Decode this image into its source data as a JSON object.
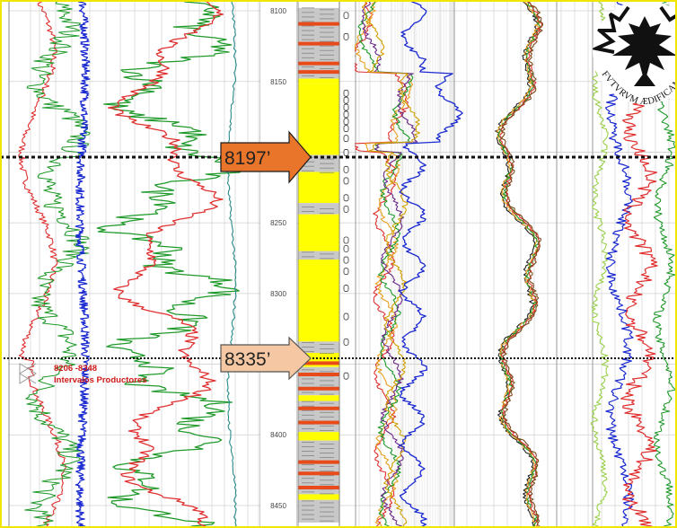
{
  "depth_track": {
    "labels": [
      "8100",
      "8150",
      "8250",
      "8300",
      "8400",
      "8450"
    ]
  },
  "markers": [
    {
      "depth": 8197,
      "label": "8197’",
      "fill": "#e8752a"
    },
    {
      "depth": 8335,
      "label": "8335’",
      "fill": "#f5c8a3"
    }
  ],
  "annotation": {
    "line1": "8206 -8348",
    "line2": "Intervalos Productores"
  },
  "logo": {
    "motto": "FVTVRVM ÆDIFICAMVS"
  },
  "colors": {
    "frame": "#f0e600",
    "lithology_sand": "#ffff00",
    "lithology_shale": "#c8c8c8",
    "lithology_coal": "#e84a1a",
    "curve_red": "#e03030",
    "curve_green": "#1f9a2a",
    "curve_blue": "#1a2ad0",
    "curve_teal": "#2a8a8a",
    "curve_orange": "#e8a020"
  }
}
